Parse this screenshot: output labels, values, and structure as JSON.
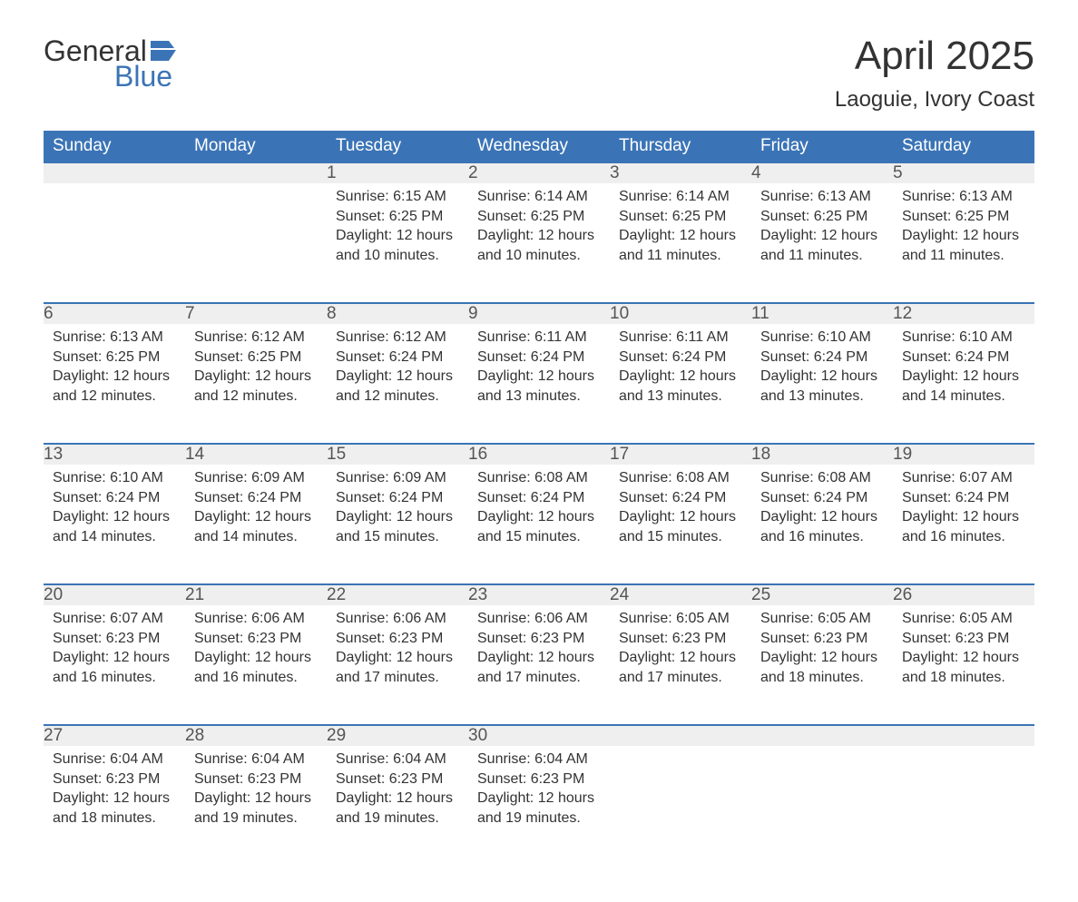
{
  "logo": {
    "word1": "General",
    "word2": "Blue"
  },
  "title": {
    "month": "April 2025",
    "location": "Laoguie, Ivory Coast"
  },
  "columns": [
    "Sunday",
    "Monday",
    "Tuesday",
    "Wednesday",
    "Thursday",
    "Friday",
    "Saturday"
  ],
  "colors": {
    "header_bg": "#3b74b6",
    "header_text": "#ffffff",
    "daynum_bg": "#efefef",
    "row_border": "#3b74b6",
    "body_text": "#333333",
    "logo_accent": "#3b74b6"
  },
  "weeks": [
    [
      null,
      null,
      {
        "n": "1",
        "sunrise": "Sunrise: 6:15 AM",
        "sunset": "Sunset: 6:25 PM",
        "daylight": "Daylight: 12 hours and 10 minutes."
      },
      {
        "n": "2",
        "sunrise": "Sunrise: 6:14 AM",
        "sunset": "Sunset: 6:25 PM",
        "daylight": "Daylight: 12 hours and 10 minutes."
      },
      {
        "n": "3",
        "sunrise": "Sunrise: 6:14 AM",
        "sunset": "Sunset: 6:25 PM",
        "daylight": "Daylight: 12 hours and 11 minutes."
      },
      {
        "n": "4",
        "sunrise": "Sunrise: 6:13 AM",
        "sunset": "Sunset: 6:25 PM",
        "daylight": "Daylight: 12 hours and 11 minutes."
      },
      {
        "n": "5",
        "sunrise": "Sunrise: 6:13 AM",
        "sunset": "Sunset: 6:25 PM",
        "daylight": "Daylight: 12 hours and 11 minutes."
      }
    ],
    [
      {
        "n": "6",
        "sunrise": "Sunrise: 6:13 AM",
        "sunset": "Sunset: 6:25 PM",
        "daylight": "Daylight: 12 hours and 12 minutes."
      },
      {
        "n": "7",
        "sunrise": "Sunrise: 6:12 AM",
        "sunset": "Sunset: 6:25 PM",
        "daylight": "Daylight: 12 hours and 12 minutes."
      },
      {
        "n": "8",
        "sunrise": "Sunrise: 6:12 AM",
        "sunset": "Sunset: 6:24 PM",
        "daylight": "Daylight: 12 hours and 12 minutes."
      },
      {
        "n": "9",
        "sunrise": "Sunrise: 6:11 AM",
        "sunset": "Sunset: 6:24 PM",
        "daylight": "Daylight: 12 hours and 13 minutes."
      },
      {
        "n": "10",
        "sunrise": "Sunrise: 6:11 AM",
        "sunset": "Sunset: 6:24 PM",
        "daylight": "Daylight: 12 hours and 13 minutes."
      },
      {
        "n": "11",
        "sunrise": "Sunrise: 6:10 AM",
        "sunset": "Sunset: 6:24 PM",
        "daylight": "Daylight: 12 hours and 13 minutes."
      },
      {
        "n": "12",
        "sunrise": "Sunrise: 6:10 AM",
        "sunset": "Sunset: 6:24 PM",
        "daylight": "Daylight: 12 hours and 14 minutes."
      }
    ],
    [
      {
        "n": "13",
        "sunrise": "Sunrise: 6:10 AM",
        "sunset": "Sunset: 6:24 PM",
        "daylight": "Daylight: 12 hours and 14 minutes."
      },
      {
        "n": "14",
        "sunrise": "Sunrise: 6:09 AM",
        "sunset": "Sunset: 6:24 PM",
        "daylight": "Daylight: 12 hours and 14 minutes."
      },
      {
        "n": "15",
        "sunrise": "Sunrise: 6:09 AM",
        "sunset": "Sunset: 6:24 PM",
        "daylight": "Daylight: 12 hours and 15 minutes."
      },
      {
        "n": "16",
        "sunrise": "Sunrise: 6:08 AM",
        "sunset": "Sunset: 6:24 PM",
        "daylight": "Daylight: 12 hours and 15 minutes."
      },
      {
        "n": "17",
        "sunrise": "Sunrise: 6:08 AM",
        "sunset": "Sunset: 6:24 PM",
        "daylight": "Daylight: 12 hours and 15 minutes."
      },
      {
        "n": "18",
        "sunrise": "Sunrise: 6:08 AM",
        "sunset": "Sunset: 6:24 PM",
        "daylight": "Daylight: 12 hours and 16 minutes."
      },
      {
        "n": "19",
        "sunrise": "Sunrise: 6:07 AM",
        "sunset": "Sunset: 6:24 PM",
        "daylight": "Daylight: 12 hours and 16 minutes."
      }
    ],
    [
      {
        "n": "20",
        "sunrise": "Sunrise: 6:07 AM",
        "sunset": "Sunset: 6:23 PM",
        "daylight": "Daylight: 12 hours and 16 minutes."
      },
      {
        "n": "21",
        "sunrise": "Sunrise: 6:06 AM",
        "sunset": "Sunset: 6:23 PM",
        "daylight": "Daylight: 12 hours and 16 minutes."
      },
      {
        "n": "22",
        "sunrise": "Sunrise: 6:06 AM",
        "sunset": "Sunset: 6:23 PM",
        "daylight": "Daylight: 12 hours and 17 minutes."
      },
      {
        "n": "23",
        "sunrise": "Sunrise: 6:06 AM",
        "sunset": "Sunset: 6:23 PM",
        "daylight": "Daylight: 12 hours and 17 minutes."
      },
      {
        "n": "24",
        "sunrise": "Sunrise: 6:05 AM",
        "sunset": "Sunset: 6:23 PM",
        "daylight": "Daylight: 12 hours and 17 minutes."
      },
      {
        "n": "25",
        "sunrise": "Sunrise: 6:05 AM",
        "sunset": "Sunset: 6:23 PM",
        "daylight": "Daylight: 12 hours and 18 minutes."
      },
      {
        "n": "26",
        "sunrise": "Sunrise: 6:05 AM",
        "sunset": "Sunset: 6:23 PM",
        "daylight": "Daylight: 12 hours and 18 minutes."
      }
    ],
    [
      {
        "n": "27",
        "sunrise": "Sunrise: 6:04 AM",
        "sunset": "Sunset: 6:23 PM",
        "daylight": "Daylight: 12 hours and 18 minutes."
      },
      {
        "n": "28",
        "sunrise": "Sunrise: 6:04 AM",
        "sunset": "Sunset: 6:23 PM",
        "daylight": "Daylight: 12 hours and 19 minutes."
      },
      {
        "n": "29",
        "sunrise": "Sunrise: 6:04 AM",
        "sunset": "Sunset: 6:23 PM",
        "daylight": "Daylight: 12 hours and 19 minutes."
      },
      {
        "n": "30",
        "sunrise": "Sunrise: 6:04 AM",
        "sunset": "Sunset: 6:23 PM",
        "daylight": "Daylight: 12 hours and 19 minutes."
      },
      null,
      null,
      null
    ]
  ]
}
